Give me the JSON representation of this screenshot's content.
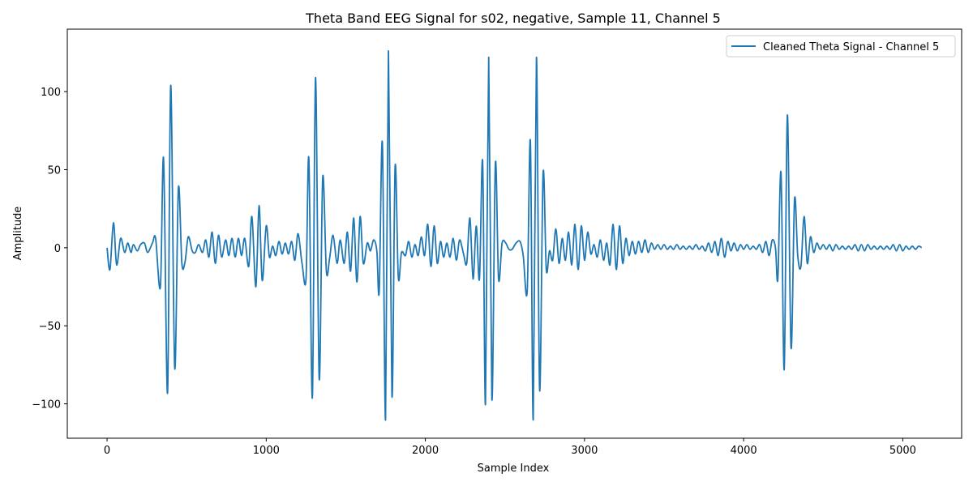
{
  "chart_data": {
    "type": "line",
    "title": "Theta Band EEG Signal for s02, negative, Sample 11, Channel 5",
    "xlabel": "Sample Index",
    "ylabel": "Amplitude",
    "xlim": [
      -250,
      5370
    ],
    "ylim": [
      -122,
      140
    ],
    "x_ticks": [
      0,
      1000,
      2000,
      3000,
      4000,
      5000
    ],
    "y_ticks": [
      -100,
      -50,
      0,
      50,
      100
    ],
    "y_tick_labels": [
      "−100",
      "−50",
      "0",
      "50",
      "100"
    ],
    "grid": false,
    "legend_position": "top-right",
    "series": [
      {
        "name": "Cleaned Theta Signal - Channel 5",
        "color": "#1f77b4",
        "points": [
          [
            0,
            0
          ],
          [
            18,
            -14
          ],
          [
            40,
            16
          ],
          [
            60,
            -11
          ],
          [
            85,
            6
          ],
          [
            110,
            -3
          ],
          [
            130,
            3
          ],
          [
            150,
            -3
          ],
          [
            165,
            2
          ],
          [
            190,
            -2
          ],
          [
            210,
            2
          ],
          [
            235,
            3
          ],
          [
            255,
            -3
          ],
          [
            285,
            3
          ],
          [
            305,
            6
          ],
          [
            335,
            -25
          ],
          [
            355,
            57
          ],
          [
            380,
            -93
          ],
          [
            400,
            104
          ],
          [
            425,
            -77
          ],
          [
            448,
            38
          ],
          [
            470,
            -10
          ],
          [
            490,
            -9
          ],
          [
            510,
            7
          ],
          [
            535,
            -2
          ],
          [
            555,
            -3
          ],
          [
            575,
            2
          ],
          [
            600,
            -3
          ],
          [
            620,
            5
          ],
          [
            640,
            -6
          ],
          [
            660,
            10
          ],
          [
            680,
            -10
          ],
          [
            700,
            8
          ],
          [
            720,
            -6
          ],
          [
            745,
            5
          ],
          [
            765,
            -5
          ],
          [
            785,
            6
          ],
          [
            805,
            -6
          ],
          [
            825,
            6
          ],
          [
            845,
            -5
          ],
          [
            865,
            6
          ],
          [
            890,
            -12
          ],
          [
            910,
            20
          ],
          [
            935,
            -25
          ],
          [
            955,
            27
          ],
          [
            975,
            -21
          ],
          [
            1000,
            14
          ],
          [
            1020,
            -6
          ],
          [
            1040,
            1
          ],
          [
            1060,
            -5
          ],
          [
            1080,
            4
          ],
          [
            1100,
            -4
          ],
          [
            1120,
            3
          ],
          [
            1140,
            -4
          ],
          [
            1160,
            4
          ],
          [
            1180,
            -8
          ],
          [
            1200,
            9
          ],
          [
            1225,
            -10
          ],
          [
            1250,
            -20
          ],
          [
            1268,
            57
          ],
          [
            1290,
            -96
          ],
          [
            1310,
            109
          ],
          [
            1333,
            -84
          ],
          [
            1355,
            45
          ],
          [
            1378,
            -15
          ],
          [
            1398,
            -7
          ],
          [
            1420,
            8
          ],
          [
            1445,
            -10
          ],
          [
            1465,
            5
          ],
          [
            1490,
            -10
          ],
          [
            1510,
            10
          ],
          [
            1530,
            -15
          ],
          [
            1550,
            19
          ],
          [
            1570,
            -22
          ],
          [
            1590,
            20
          ],
          [
            1610,
            -10
          ],
          [
            1635,
            3
          ],
          [
            1655,
            -2
          ],
          [
            1675,
            5
          ],
          [
            1695,
            -2
          ],
          [
            1710,
            -28
          ],
          [
            1730,
            67
          ],
          [
            1750,
            -110
          ],
          [
            1768,
            126
          ],
          [
            1790,
            -95
          ],
          [
            1810,
            52
          ],
          [
            1830,
            -19
          ],
          [
            1850,
            -3
          ],
          [
            1875,
            -5
          ],
          [
            1895,
            4
          ],
          [
            1915,
            -6
          ],
          [
            1935,
            2
          ],
          [
            1955,
            -5
          ],
          [
            1975,
            7
          ],
          [
            1995,
            -5
          ],
          [
            2015,
            15
          ],
          [
            2035,
            -12
          ],
          [
            2055,
            14
          ],
          [
            2075,
            -10
          ],
          [
            2095,
            4
          ],
          [
            2115,
            -6
          ],
          [
            2135,
            3
          ],
          [
            2155,
            -6
          ],
          [
            2175,
            6
          ],
          [
            2195,
            -8
          ],
          [
            2215,
            5
          ],
          [
            2240,
            -4
          ],
          [
            2260,
            -10
          ],
          [
            2280,
            19
          ],
          [
            2300,
            -20
          ],
          [
            2320,
            14
          ],
          [
            2340,
            -20
          ],
          [
            2360,
            55
          ],
          [
            2378,
            -100
          ],
          [
            2398,
            122
          ],
          [
            2418,
            -97
          ],
          [
            2440,
            54
          ],
          [
            2460,
            -20
          ],
          [
            2482,
            3
          ],
          [
            2505,
            3
          ],
          [
            2525,
            -1
          ],
          [
            2545,
            -1
          ],
          [
            2570,
            3
          ],
          [
            2595,
            4
          ],
          [
            2615,
            -5
          ],
          [
            2640,
            -28
          ],
          [
            2660,
            68
          ],
          [
            2678,
            -110
          ],
          [
            2698,
            122
          ],
          [
            2718,
            -91
          ],
          [
            2740,
            48
          ],
          [
            2760,
            -14
          ],
          [
            2780,
            -2
          ],
          [
            2800,
            -8
          ],
          [
            2820,
            12
          ],
          [
            2840,
            -10
          ],
          [
            2860,
            6
          ],
          [
            2880,
            -8
          ],
          [
            2900,
            10
          ],
          [
            2920,
            -11
          ],
          [
            2940,
            15
          ],
          [
            2960,
            -14
          ],
          [
            2980,
            14
          ],
          [
            3000,
            -8
          ],
          [
            3020,
            10
          ],
          [
            3040,
            -4
          ],
          [
            3060,
            2
          ],
          [
            3080,
            -6
          ],
          [
            3100,
            5
          ],
          [
            3120,
            -8
          ],
          [
            3140,
            3
          ],
          [
            3160,
            -11
          ],
          [
            3180,
            15
          ],
          [
            3200,
            -14
          ],
          [
            3220,
            14
          ],
          [
            3240,
            -10
          ],
          [
            3260,
            6
          ],
          [
            3280,
            -5
          ],
          [
            3300,
            4
          ],
          [
            3320,
            -4
          ],
          [
            3340,
            4
          ],
          [
            3360,
            -3
          ],
          [
            3380,
            5
          ],
          [
            3400,
            -3
          ],
          [
            3420,
            3
          ],
          [
            3440,
            -1
          ],
          [
            3460,
            2
          ],
          [
            3480,
            -1
          ],
          [
            3500,
            2
          ],
          [
            3520,
            -1
          ],
          [
            3540,
            1
          ],
          [
            3560,
            -1
          ],
          [
            3580,
            2
          ],
          [
            3600,
            -1
          ],
          [
            3620,
            1
          ],
          [
            3640,
            -1
          ],
          [
            3660,
            1
          ],
          [
            3680,
            -1
          ],
          [
            3700,
            2
          ],
          [
            3720,
            -1
          ],
          [
            3740,
            1
          ],
          [
            3760,
            -2
          ],
          [
            3780,
            3
          ],
          [
            3800,
            -3
          ],
          [
            3820,
            4
          ],
          [
            3840,
            -5
          ],
          [
            3860,
            6
          ],
          [
            3880,
            -6
          ],
          [
            3900,
            4
          ],
          [
            3920,
            -2
          ],
          [
            3940,
            3
          ],
          [
            3960,
            -2
          ],
          [
            3980,
            2
          ],
          [
            4000,
            -1
          ],
          [
            4020,
            2
          ],
          [
            4040,
            -1
          ],
          [
            4060,
            1
          ],
          [
            4080,
            -1
          ],
          [
            4100,
            2
          ],
          [
            4120,
            -3
          ],
          [
            4140,
            4
          ],
          [
            4160,
            -5
          ],
          [
            4180,
            5
          ],
          [
            4200,
            0
          ],
          [
            4215,
            -20
          ],
          [
            4235,
            48
          ],
          [
            4255,
            -78
          ],
          [
            4275,
            85
          ],
          [
            4298,
            -64
          ],
          [
            4320,
            31
          ],
          [
            4340,
            -5
          ],
          [
            4360,
            -12
          ],
          [
            4380,
            20
          ],
          [
            4400,
            -10
          ],
          [
            4420,
            7
          ],
          [
            4440,
            -3
          ],
          [
            4460,
            3
          ],
          [
            4480,
            -1
          ],
          [
            4500,
            2
          ],
          [
            4520,
            -1
          ],
          [
            4540,
            2
          ],
          [
            4560,
            -2
          ],
          [
            4580,
            2
          ],
          [
            4600,
            -1
          ],
          [
            4620,
            1
          ],
          [
            4640,
            -1
          ],
          [
            4660,
            1
          ],
          [
            4680,
            -1
          ],
          [
            4700,
            2
          ],
          [
            4720,
            -2
          ],
          [
            4740,
            2
          ],
          [
            4760,
            -2
          ],
          [
            4780,
            2
          ],
          [
            4800,
            -1
          ],
          [
            4820,
            1
          ],
          [
            4840,
            -1
          ],
          [
            4860,
            1
          ],
          [
            4880,
            -1
          ],
          [
            4900,
            1
          ],
          [
            4920,
            -1
          ],
          [
            4940,
            2
          ],
          [
            4960,
            -2
          ],
          [
            4980,
            2
          ],
          [
            5000,
            -2
          ],
          [
            5020,
            1
          ],
          [
            5040,
            -1
          ],
          [
            5060,
            1
          ],
          [
            5080,
            -1
          ],
          [
            5100,
            1
          ],
          [
            5119,
            0
          ]
        ]
      }
    ]
  }
}
